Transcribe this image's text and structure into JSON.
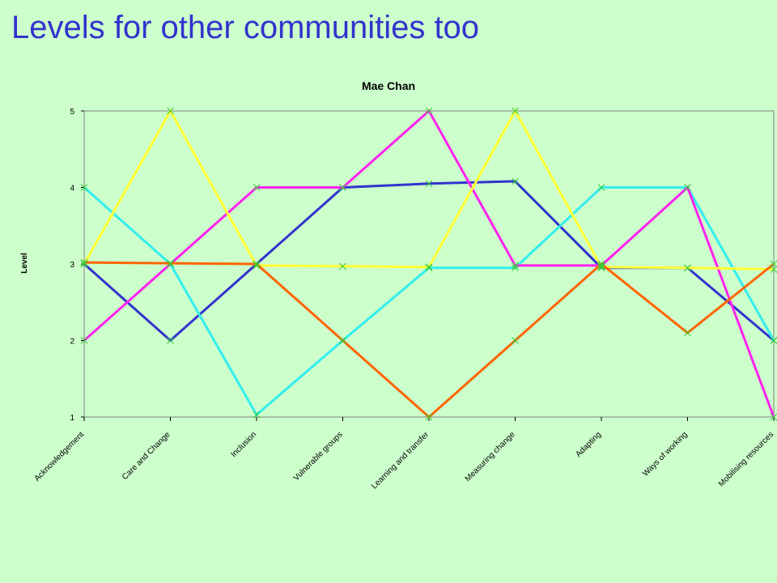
{
  "slide": {
    "title": "Levels for other communities too"
  },
  "colors": {
    "background": "#ccffcc",
    "title": "#3333cc",
    "marker": "#33cc33"
  },
  "chart_data": {
    "type": "line",
    "title": "Mae Chan",
    "xlabel": "",
    "ylabel": "Level",
    "ylim": [
      1,
      5
    ],
    "yticks": [
      1,
      2,
      3,
      4,
      5
    ],
    "grid": false,
    "legend": "none",
    "categories": [
      "Acknowledgement",
      "Care and Change",
      "Inclusion",
      "Vulnerable groups",
      "Learning and transfer",
      "Measuring change",
      "Adapting",
      "Ways of working",
      "Mobilising resources"
    ],
    "series": [
      {
        "color": "#3333cc",
        "values": [
          3,
          2,
          3,
          4,
          4.05,
          4.08,
          2.95,
          2.95,
          2
        ]
      },
      {
        "color": "#33eeee",
        "values": [
          4,
          3,
          1.03,
          2,
          2.95,
          2.95,
          4,
          4,
          2
        ]
      },
      {
        "color": "#ff22ee",
        "values": [
          2,
          3,
          4,
          4,
          5,
          2.98,
          2.98,
          4,
          1
        ]
      },
      {
        "color": "#ffff33",
        "values": [
          3,
          5,
          2.98,
          2.97,
          2.96,
          5,
          2.96,
          2.95,
          2.93
        ]
      },
      {
        "color": "#ff6600",
        "values": [
          3.02,
          3.01,
          3,
          2,
          1,
          2,
          3,
          2.1,
          3
        ]
      }
    ]
  }
}
